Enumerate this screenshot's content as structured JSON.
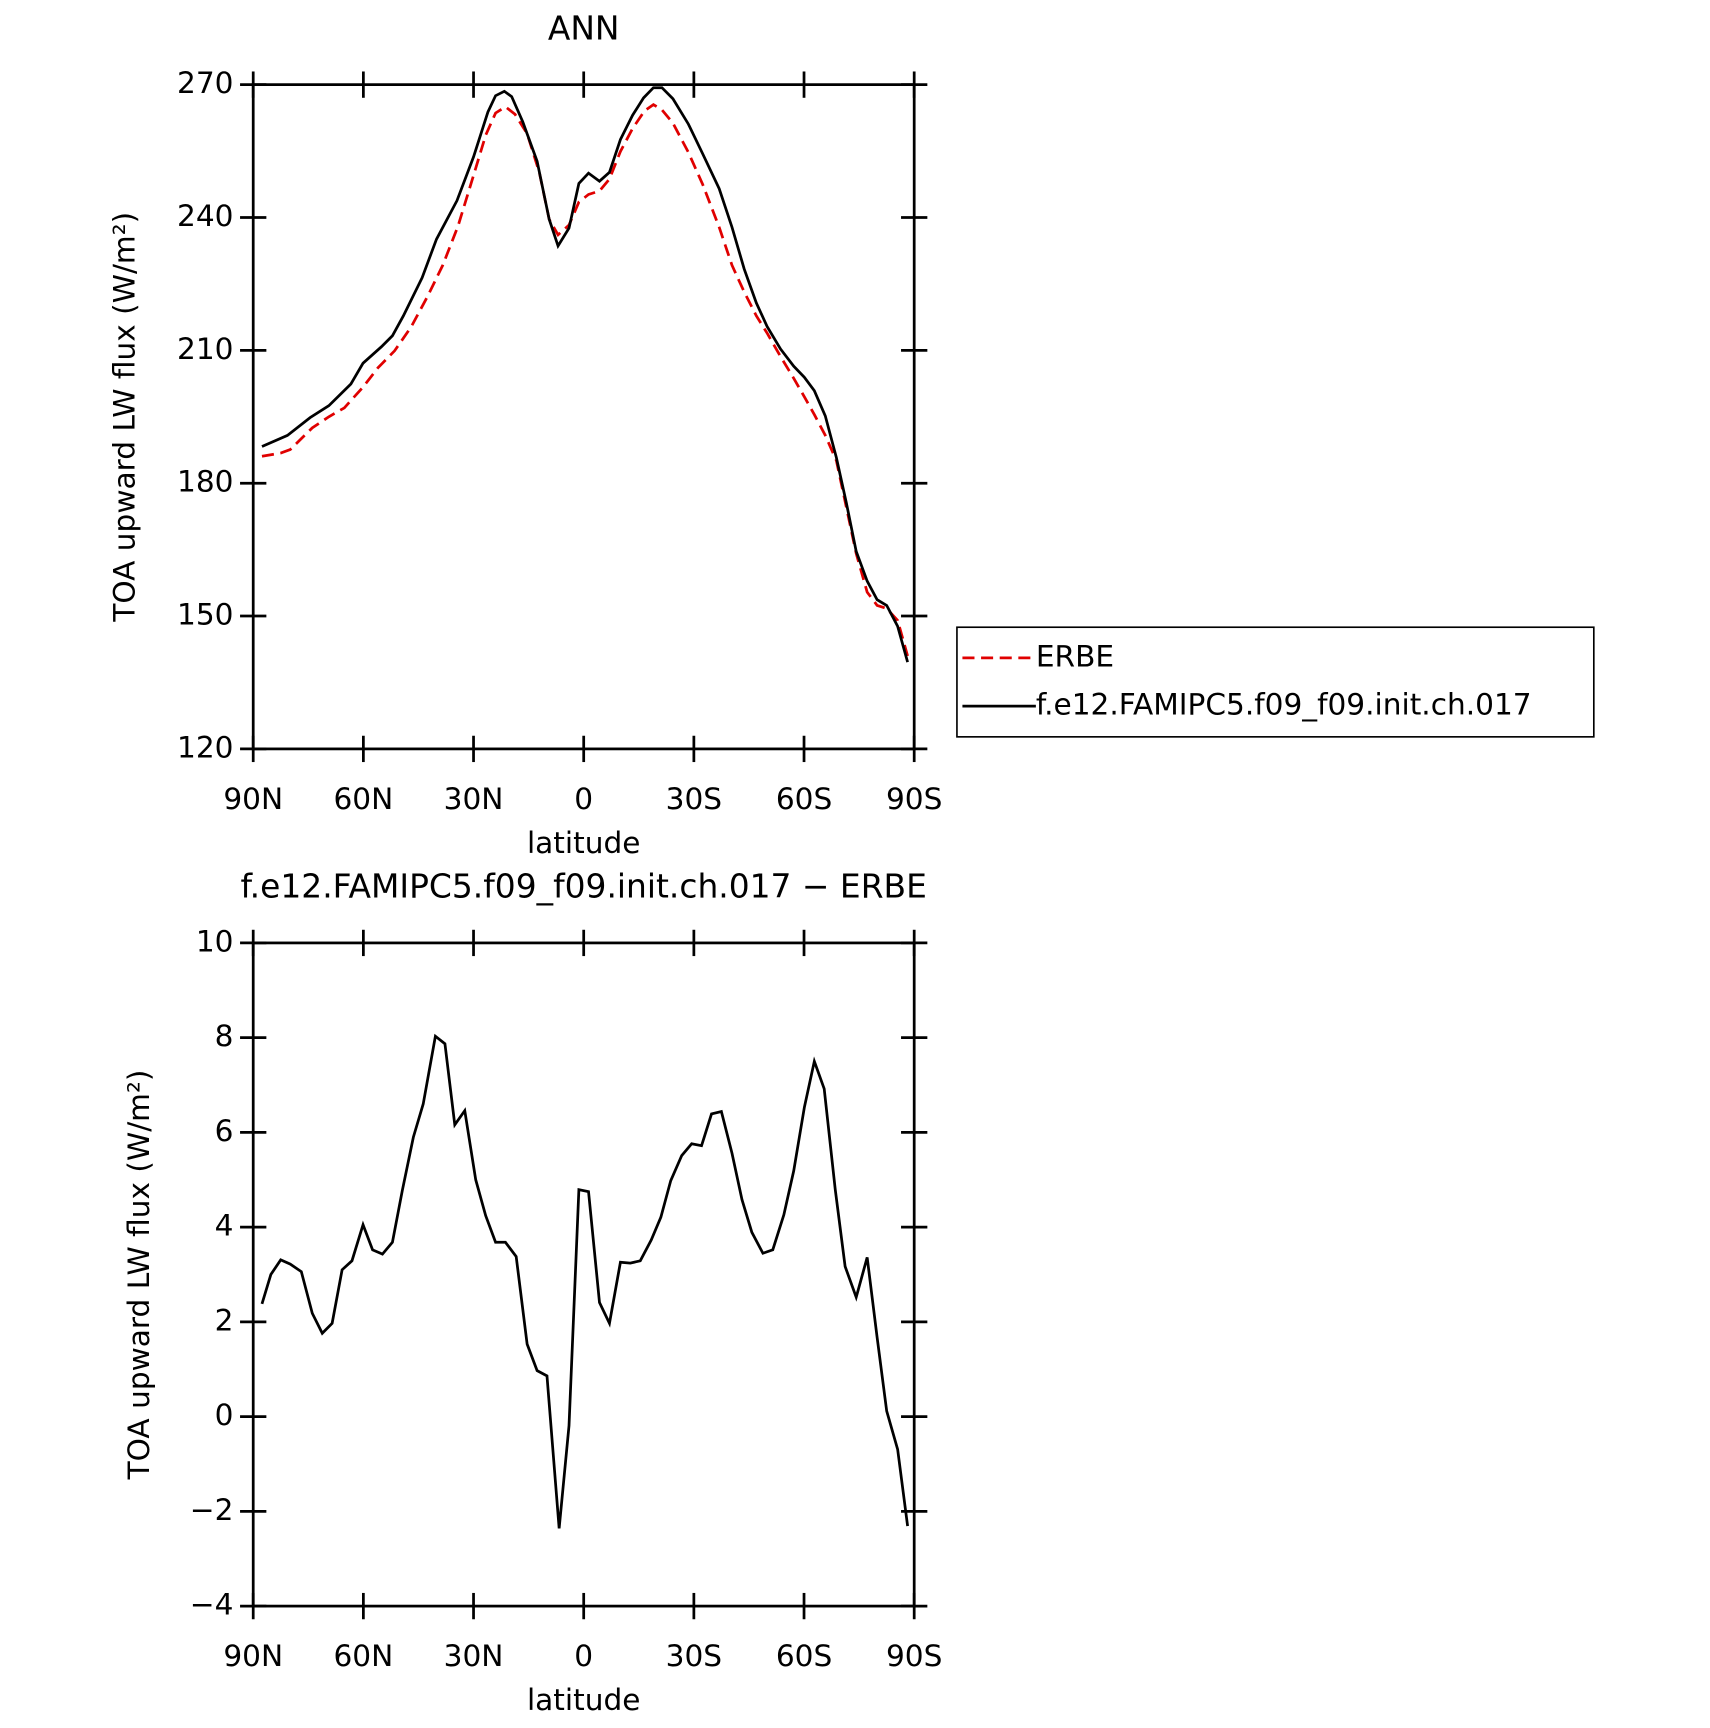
{
  "chart_data": [
    {
      "type": "line",
      "title": "ANN",
      "x_label": "latitude",
      "y_label": "TOA upward LW flux (W/m²)",
      "xlim": [
        90,
        -90
      ],
      "xticks": [
        {
          "value": 90,
          "label": "90N"
        },
        {
          "value": 60,
          "label": "60N"
        },
        {
          "value": 30,
          "label": "30N"
        },
        0,
        {
          "value": -30,
          "label": "30S"
        },
        {
          "value": -60,
          "label": "60S"
        },
        {
          "value": -90,
          "label": "90S"
        }
      ],
      "ylim": [
        120,
        270
      ],
      "yticks": [
        120,
        150,
        180,
        210,
        240,
        270
      ],
      "series": [
        {
          "name": "ERBE",
          "color": "#e00000",
          "dash": true,
          "x": [
            87.6,
            82.5,
            79.9,
            73.9,
            69.4,
            65.2,
            60.1,
            56.0,
            51.5,
            47.0,
            42.5,
            38.4,
            34.2,
            30.0,
            26.7,
            24.0,
            21.3,
            18.7,
            15.4,
            12.1,
            9.4,
            7.0,
            4.0,
            1.3,
            -1.3,
            -4.3,
            -7.0,
            -10.0,
            -13.3,
            -16.6,
            -19.0,
            -21.3,
            -24.3,
            -28.5,
            -32.4,
            -36.9,
            -40.4,
            -43.7,
            -47.0,
            -50.0,
            -53.6,
            -57.2,
            -60.1,
            -62.8,
            -65.8,
            -68.8,
            -71.5,
            -74.2,
            -77.2,
            -79.9,
            -82.5,
            -85.5,
            -88.2
          ],
          "values": [
            186.1,
            186.8,
            187.6,
            192.5,
            195.0,
            197.0,
            201.7,
            206.1,
            209.9,
            215.3,
            222.2,
            229.2,
            238.1,
            249.5,
            258.6,
            263.6,
            265.0,
            263.3,
            258.9,
            250.2,
            239.6,
            236.1,
            238.3,
            243.5,
            245.2,
            246.0,
            248.7,
            254.9,
            260.1,
            264.1,
            265.5,
            264.3,
            261.3,
            254.7,
            247.5,
            237.8,
            229.2,
            223.2,
            217.8,
            213.8,
            208.6,
            203.7,
            199.5,
            195.5,
            190.8,
            185.1,
            174.7,
            164.1,
            155.4,
            152.4,
            151.7,
            149.0,
            141.0
          ]
        },
        {
          "name": "f.e12.FAMIPC5.f09_f09.init.ch.017",
          "color": "#000000",
          "dash": false,
          "x": [
            87.6,
            80.7,
            74.5,
            69.4,
            63.4,
            60.1,
            55.1,
            52.1,
            49.1,
            44.0,
            40.1,
            34.5,
            30.0,
            26.1,
            24.0,
            21.6,
            19.6,
            16.6,
            12.7,
            9.4,
            7.0,
            4.0,
            1.3,
            -1.3,
            -4.3,
            -7.0,
            -10.0,
            -13.3,
            -16.3,
            -19.0,
            -21.3,
            -24.3,
            -28.5,
            -32.4,
            -36.9,
            -40.4,
            -43.7,
            -47.0,
            -50.0,
            -53.6,
            -57.2,
            -60.1,
            -62.8,
            -65.8,
            -68.8,
            -71.5,
            -74.2,
            -77.2,
            -79.9,
            -82.5,
            -85.5,
            -88.2
          ],
          "values": [
            188.3,
            190.8,
            194.8,
            197.5,
            202.4,
            207.1,
            210.8,
            213.3,
            217.8,
            226.4,
            235.1,
            243.8,
            253.7,
            263.8,
            267.5,
            268.5,
            267.3,
            261.6,
            252.7,
            239.6,
            233.6,
            237.6,
            247.7,
            250.0,
            248.2,
            250.2,
            257.6,
            263.1,
            267.0,
            269.3,
            269.3,
            266.8,
            261.1,
            254.4,
            246.5,
            237.8,
            228.4,
            220.7,
            215.3,
            210.3,
            206.4,
            203.9,
            200.9,
            195.2,
            185.8,
            175.7,
            164.6,
            157.9,
            153.7,
            152.4,
            147.7,
            139.6
          ]
        }
      ]
    },
    {
      "type": "line",
      "title": "f.e12.FAMIPC5.f09_f09.init.ch.017 − ERBE",
      "x_label": "latitude",
      "y_label": "TOA upward LW flux (W/m²)",
      "xlim": [
        90,
        -90
      ],
      "xticks": [
        {
          "value": 90,
          "label": "90N"
        },
        {
          "value": 60,
          "label": "60N"
        },
        {
          "value": 30,
          "label": "30N"
        },
        0,
        {
          "value": -30,
          "label": "30S"
        },
        {
          "value": -60,
          "label": "60S"
        },
        {
          "value": -90,
          "label": "90S"
        }
      ],
      "ylim": [
        -4,
        10
      ],
      "yticks": [
        {
          "value": -4,
          "label": "−4"
        },
        {
          "value": -2,
          "label": "−2"
        },
        0,
        2,
        4,
        6,
        8,
        10
      ],
      "series": [
        {
          "color": "#000000",
          "dash": false,
          "x": [
            87.6,
            85.2,
            82.5,
            79.9,
            76.9,
            73.9,
            71.2,
            68.5,
            65.8,
            63.1,
            60.1,
            57.5,
            54.8,
            52.1,
            49.4,
            46.4,
            43.7,
            40.4,
            37.8,
            35.1,
            32.4,
            29.4,
            26.7,
            24.0,
            21.3,
            18.4,
            15.4,
            12.7,
            10.0,
            6.7,
            4.0,
            1.3,
            -1.3,
            -4.3,
            -7.0,
            -10.0,
            -12.7,
            -15.4,
            -18.4,
            -21.0,
            -23.7,
            -26.7,
            -29.4,
            -32.1,
            -34.8,
            -37.5,
            -40.4,
            -43.1,
            -45.8,
            -48.8,
            -51.5,
            -54.5,
            -57.2,
            -60.1,
            -62.8,
            -65.5,
            -68.5,
            -71.2,
            -74.2,
            -77.2,
            -79.9,
            -82.5,
            -85.5,
            -88.2
          ],
          "values": [
            2.38,
            3.0,
            3.31,
            3.22,
            3.06,
            2.18,
            1.76,
            1.97,
            3.1,
            3.29,
            4.05,
            3.52,
            3.43,
            3.68,
            4.77,
            5.9,
            6.6,
            8.03,
            7.87,
            6.16,
            6.46,
            5.0,
            4.24,
            3.68,
            3.68,
            3.38,
            1.53,
            0.97,
            0.86,
            -2.36,
            -0.19,
            4.79,
            4.75,
            2.41,
            1.97,
            3.26,
            3.24,
            3.29,
            3.73,
            4.21,
            4.98,
            5.51,
            5.76,
            5.72,
            6.39,
            6.44,
            5.56,
            4.58,
            3.89,
            3.45,
            3.52,
            4.26,
            5.19,
            6.53,
            7.5,
            6.92,
            4.79,
            3.17,
            2.52,
            3.36,
            1.67,
            0.12,
            -0.69,
            -2.31
          ]
        }
      ]
    }
  ]
}
